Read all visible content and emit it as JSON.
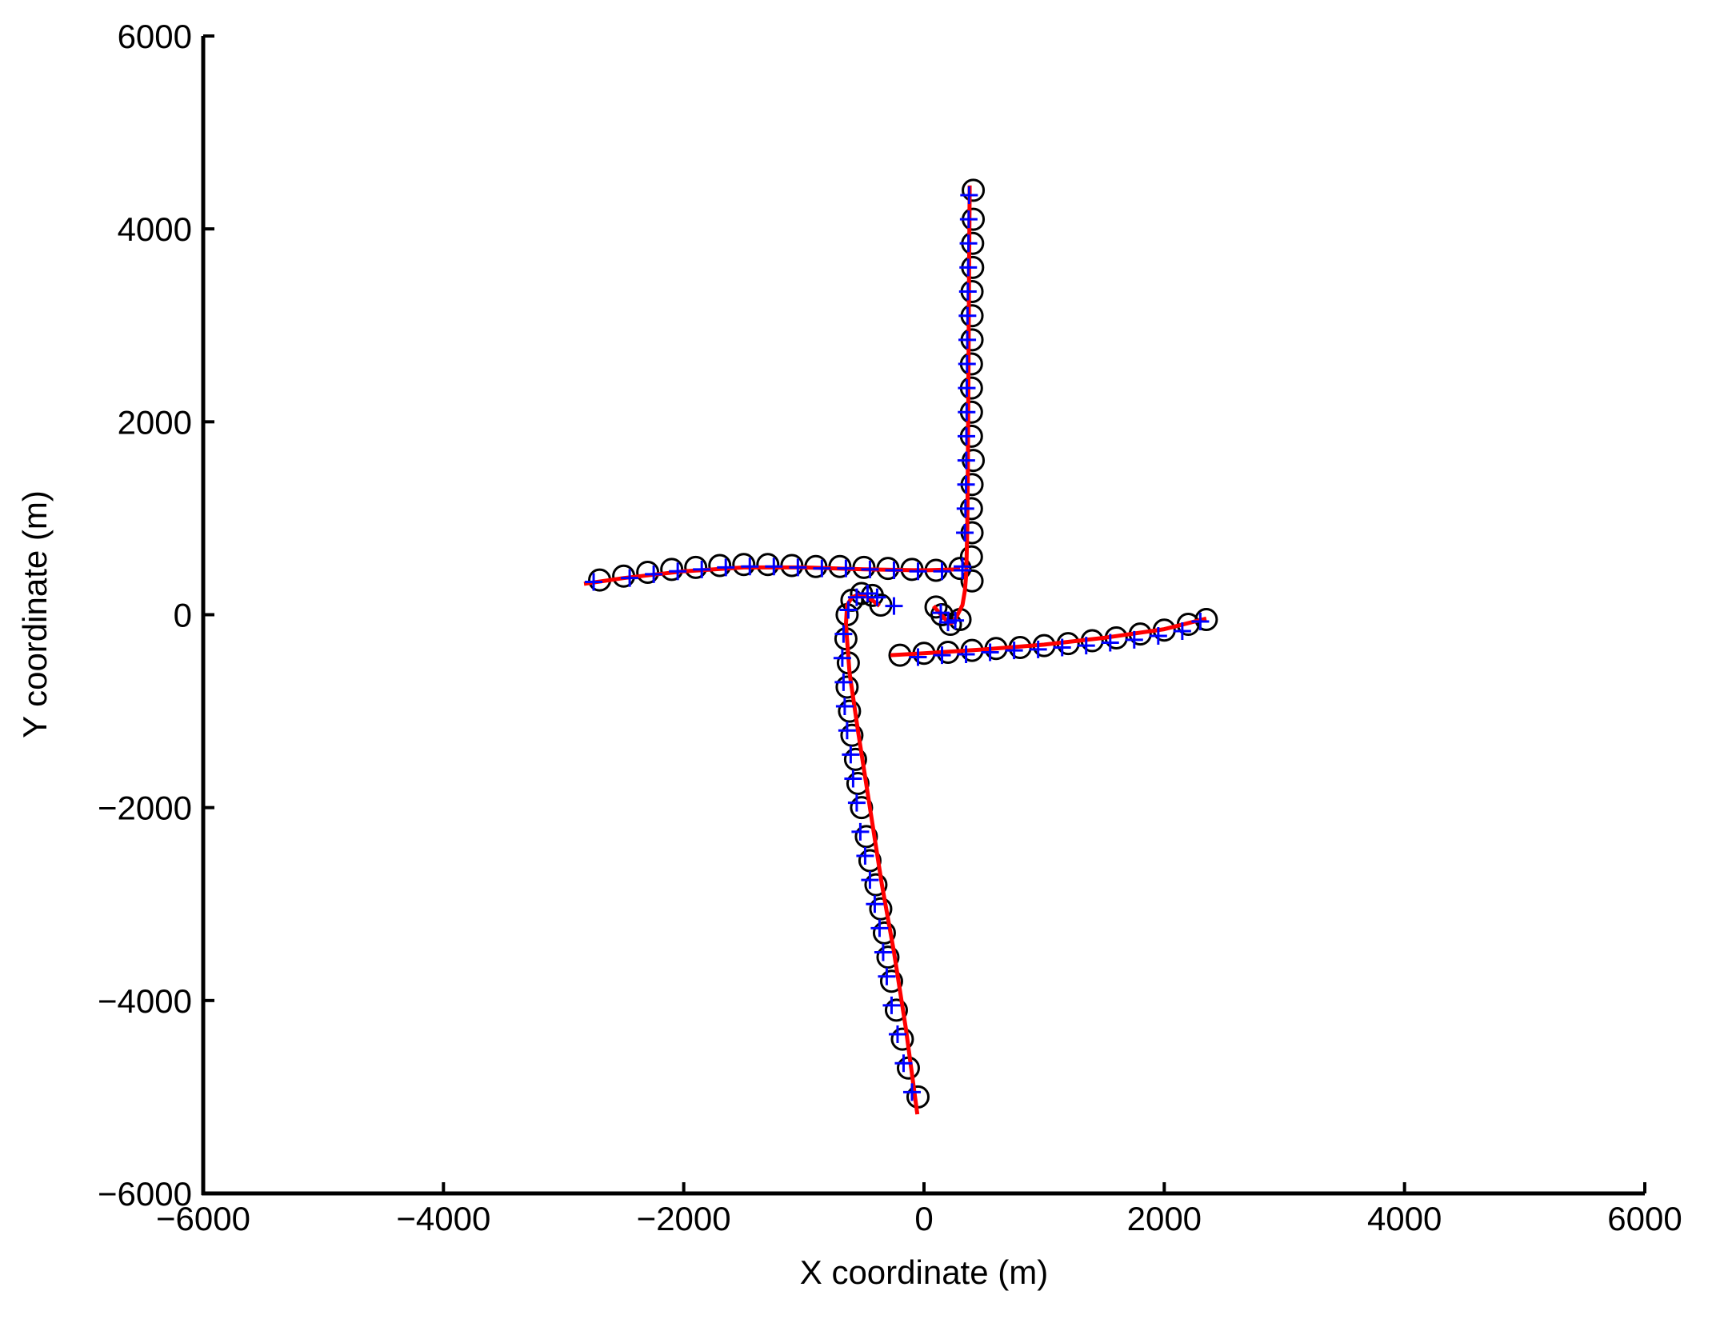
{
  "chart_data": {
    "type": "scatter",
    "xlabel": "X coordinate (m)",
    "ylabel": "Y coordinate (m)",
    "xlim": [
      -6000,
      6000
    ],
    "ylim": [
      -6000,
      6000
    ],
    "xticks": [
      {
        "value": -6000,
        "label": "−6000"
      },
      {
        "value": -4000,
        "label": "−4000"
      },
      {
        "value": -2000,
        "label": "−2000"
      },
      0,
      2000,
      4000,
      6000
    ],
    "yticks": [
      {
        "value": -6000,
        "label": "−6000"
      },
      {
        "value": -4000,
        "label": "−4000"
      },
      {
        "value": -2000,
        "label": "−2000"
      },
      0,
      2000,
      4000,
      6000
    ],
    "grid": false,
    "series": [
      {
        "style": "line",
        "color": "#ff0000",
        "x": [
          380,
          375,
          370,
          365,
          360,
          355,
          350,
          340,
          320,
          280,
          240,
          210,
          180,
          120,
          80,
          null,
          -2830,
          -2500,
          -2000,
          -1500,
          -1000,
          -500,
          0,
          300,
          null,
          -55,
          -150,
          -250,
          -350,
          -450,
          -550,
          -620,
          -650,
          -640,
          -600,
          -540,
          -480,
          -420,
          -370,
          null,
          -280,
          0,
          500,
          1000,
          1500,
          2000,
          2350
        ],
        "values": [
          4450,
          3500,
          2500,
          1500,
          900,
          600,
          400,
          250,
          100,
          0,
          -80,
          -90,
          -50,
          30,
          90,
          null,
          320,
          380,
          450,
          490,
          490,
          470,
          460,
          470,
          null,
          -5180,
          -4300,
          -3500,
          -2800,
          -2000,
          -1200,
          -600,
          -100,
          100,
          180,
          210,
          190,
          140,
          90,
          null,
          -420,
          -400,
          -360,
          -310,
          -240,
          -150,
          -40
        ]
      },
      {
        "style": "circle",
        "color": "#000000",
        "x": [
          410,
          410,
          405,
          405,
          400,
          400,
          400,
          395,
          395,
          395,
          395,
          410,
          400,
          395,
          400,
          395,
          400,
          300,
          220,
          150,
          100,
          -2700,
          -2500,
          -2300,
          -2100,
          -1900,
          -1700,
          -1500,
          -1300,
          -1100,
          -900,
          -700,
          -500,
          -300,
          -100,
          100,
          300,
          -50,
          -130,
          -180,
          -230,
          -270,
          -300,
          -330,
          -360,
          -400,
          -450,
          -480,
          -520,
          -550,
          -570,
          -600,
          -620,
          -640,
          -630,
          -650,
          -640,
          -600,
          -520,
          -430,
          -360,
          -200,
          0,
          200,
          400,
          600,
          800,
          1000,
          1200,
          1400,
          1600,
          1800,
          2000,
          2200,
          2350
        ],
        "values": [
          4400,
          4100,
          3850,
          3600,
          3350,
          3100,
          2850,
          2600,
          2350,
          2100,
          1850,
          1600,
          1350,
          1100,
          850,
          600,
          350,
          -50,
          -100,
          0,
          80,
          360,
          400,
          440,
          470,
          490,
          510,
          520,
          520,
          510,
          500,
          500,
          490,
          480,
          470,
          460,
          480,
          -5000,
          -4700,
          -4400,
          -4100,
          -3800,
          -3550,
          -3300,
          -3050,
          -2800,
          -2550,
          -2300,
          -2000,
          -1750,
          -1500,
          -1250,
          -1000,
          -750,
          -500,
          -250,
          0,
          150,
          220,
          200,
          100,
          -420,
          -400,
          -390,
          -370,
          -350,
          -340,
          -320,
          -300,
          -270,
          -240,
          -200,
          -160,
          -100,
          -50
        ]
      },
      {
        "style": "plus",
        "color": "#0000ff",
        "x": [
          375,
          372,
          370,
          368,
          365,
          362,
          360,
          358,
          356,
          355,
          353,
          352,
          350,
          345,
          340,
          320,
          260,
          200,
          140,
          -2750,
          -2450,
          -2250,
          -2050,
          -1850,
          -1650,
          -1450,
          -1250,
          -1050,
          -850,
          -650,
          -450,
          -250,
          -50,
          150,
          320,
          -100,
          -170,
          -220,
          -270,
          -310,
          -340,
          -370,
          -410,
          -450,
          -490,
          -530,
          -560,
          -590,
          -610,
          -640,
          -660,
          -670,
          -680,
          -670,
          -630,
          -560,
          -470,
          -390,
          -250,
          -50,
          150,
          350,
          550,
          750,
          950,
          1150,
          1350,
          1550,
          1750,
          1950,
          2150,
          2300
        ],
        "values": [
          4350,
          4100,
          3850,
          3600,
          3350,
          3100,
          2850,
          2600,
          2350,
          2100,
          1850,
          1600,
          1350,
          1100,
          850,
          500,
          -60,
          -80,
          20,
          340,
          380,
          420,
          450,
          470,
          490,
          500,
          500,
          490,
          480,
          480,
          470,
          460,
          450,
          450,
          460,
          -4950,
          -4650,
          -4350,
          -4050,
          -3750,
          -3500,
          -3250,
          -3000,
          -2750,
          -2500,
          -2250,
          -1950,
          -1700,
          -1450,
          -1200,
          -950,
          -700,
          -450,
          -200,
          50,
          180,
          220,
          180,
          90,
          -440,
          -420,
          -410,
          -390,
          -370,
          -360,
          -340,
          -320,
          -290,
          -260,
          -220,
          -170,
          -70
        ]
      }
    ]
  }
}
